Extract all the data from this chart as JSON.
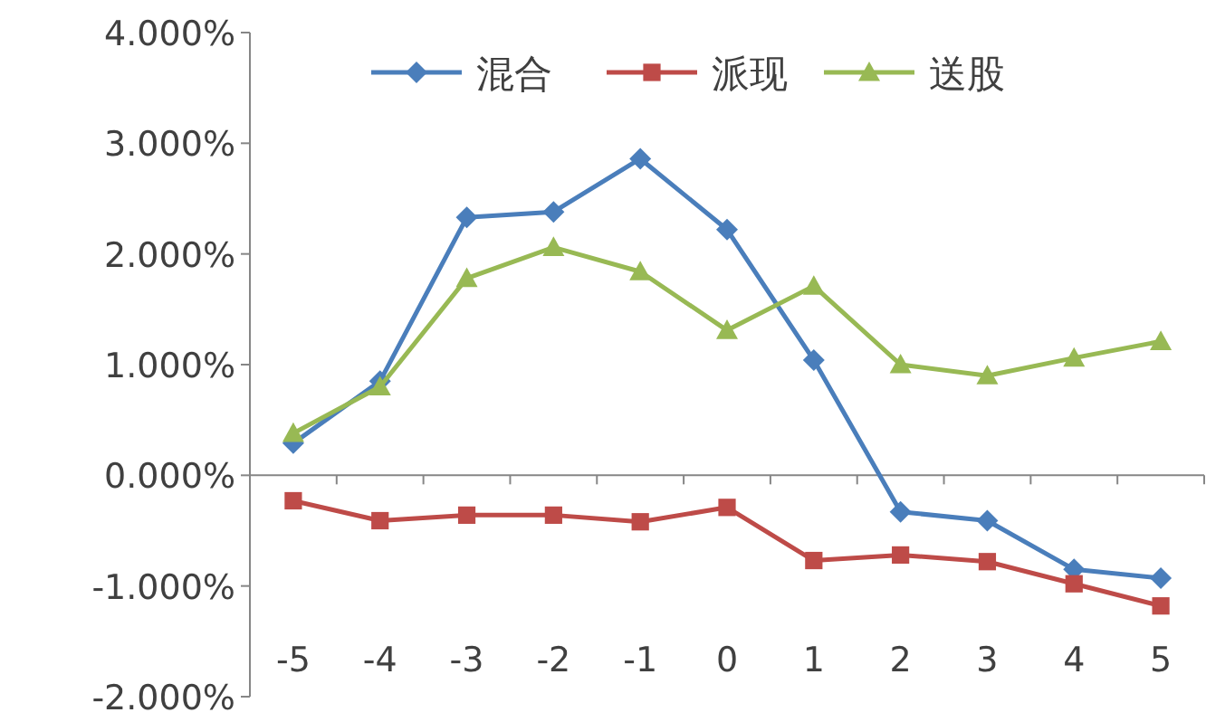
{
  "chart_data": {
    "type": "line",
    "categories": [
      "-5",
      "-4",
      "-3",
      "-2",
      "-1",
      "0",
      "1",
      "2",
      "3",
      "4",
      "5"
    ],
    "series": [
      {
        "name": "混合",
        "color": "#4a7ebb",
        "marker": "diamond",
        "values": [
          0.29,
          0.85,
          2.33,
          2.38,
          2.86,
          2.22,
          1.04,
          -0.33,
          -0.41,
          -0.85,
          -0.93
        ]
      },
      {
        "name": "派现",
        "color": "#be4b48",
        "marker": "square",
        "values": [
          -0.23,
          -0.41,
          -0.36,
          -0.36,
          -0.42,
          -0.29,
          -0.77,
          -0.72,
          -0.78,
          -0.98,
          -1.18
        ]
      },
      {
        "name": "送股",
        "color": "#98b954",
        "marker": "triangle",
        "values": [
          0.38,
          0.8,
          1.78,
          2.06,
          1.84,
          1.31,
          1.71,
          1.0,
          0.9,
          1.06,
          1.21
        ]
      }
    ],
    "ylim": [
      -2,
      4
    ],
    "yticks": [
      {
        "value": -2,
        "label": "-2.000%"
      },
      {
        "value": -1,
        "label": "-1.000%"
      },
      {
        "value": 0,
        "label": "0.000%"
      },
      {
        "value": 1,
        "label": "1.000%"
      },
      {
        "value": 2,
        "label": "2.000%"
      },
      {
        "value": 3,
        "label": "3.000%"
      },
      {
        "value": 4,
        "label": "4.000%"
      }
    ],
    "legend": "top right",
    "line_style": "solid"
  }
}
